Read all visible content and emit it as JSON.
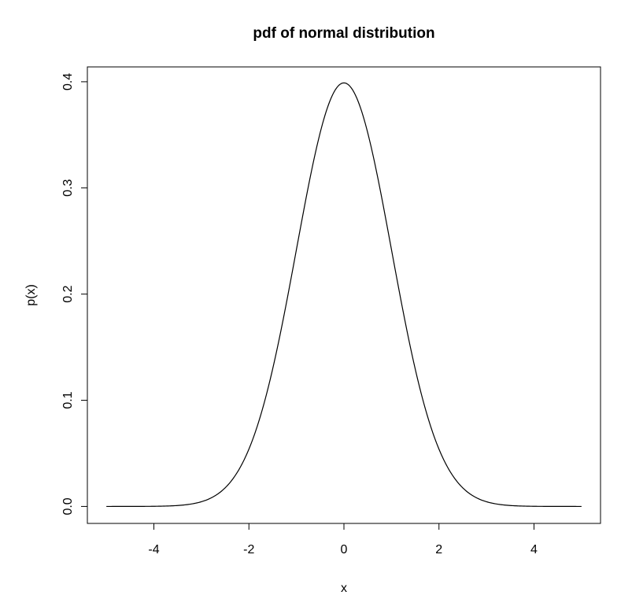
{
  "chart_data": {
    "type": "line",
    "title": "pdf of normal distribution",
    "xlabel": "x",
    "ylabel": "p(x)",
    "xlim": [
      -5.4,
      5.4
    ],
    "ylim": [
      -0.016,
      0.414
    ],
    "x_ticks": [
      -4,
      -2,
      0,
      2,
      4
    ],
    "x_tick_labels": [
      "-4",
      "-2",
      "0",
      "2",
      "4"
    ],
    "y_ticks": [
      0.0,
      0.1,
      0.2,
      0.3,
      0.4
    ],
    "y_tick_labels": [
      "0.0",
      "0.1",
      "0.2",
      "0.3",
      "0.4"
    ],
    "grid": false,
    "series": [
      {
        "x": [
          -5,
          -4.5,
          -4,
          -3.5,
          -3,
          -2.75,
          -2.5,
          -2.25,
          -2,
          -1.75,
          -1.5,
          -1.25,
          -1,
          -0.75,
          -0.5,
          -0.25,
          0,
          0.25,
          0.5,
          0.75,
          1,
          1.25,
          1.5,
          1.75,
          2,
          2.25,
          2.5,
          2.75,
          3,
          3.5,
          4,
          4.5,
          5
        ],
        "y": [
          0.0,
          0.0,
          0.0001,
          0.0009,
          0.0044,
          0.0091,
          0.0175,
          0.0317,
          0.054,
          0.0863,
          0.1295,
          0.1826,
          0.242,
          0.3011,
          0.3521,
          0.3867,
          0.3989,
          0.3867,
          0.3521,
          0.3011,
          0.242,
          0.1826,
          0.1295,
          0.0863,
          0.054,
          0.0317,
          0.0175,
          0.0091,
          0.0044,
          0.0009,
          0.0001,
          0.0,
          0.0
        ],
        "color": "#000000"
      }
    ]
  }
}
